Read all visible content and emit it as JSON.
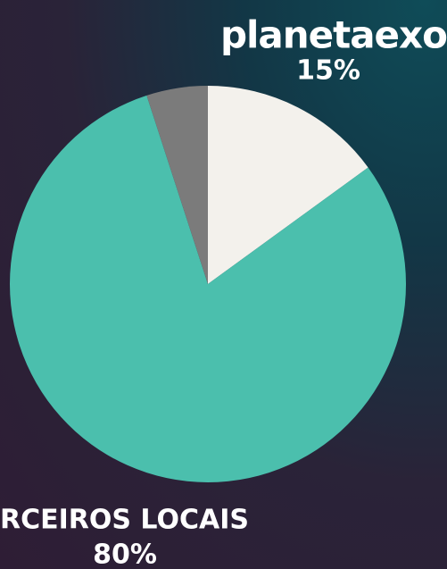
{
  "chart_data": {
    "type": "pie",
    "categories": [
      "planetaexo",
      "RCEIROS LOCAIS",
      null
    ],
    "values": [
      15,
      80,
      5
    ],
    "value_labels": [
      "15%",
      "80%",
      null
    ],
    "colors": [
      "#f3f1ec",
      "#4bbfad",
      "#7b7b7b"
    ]
  }
}
